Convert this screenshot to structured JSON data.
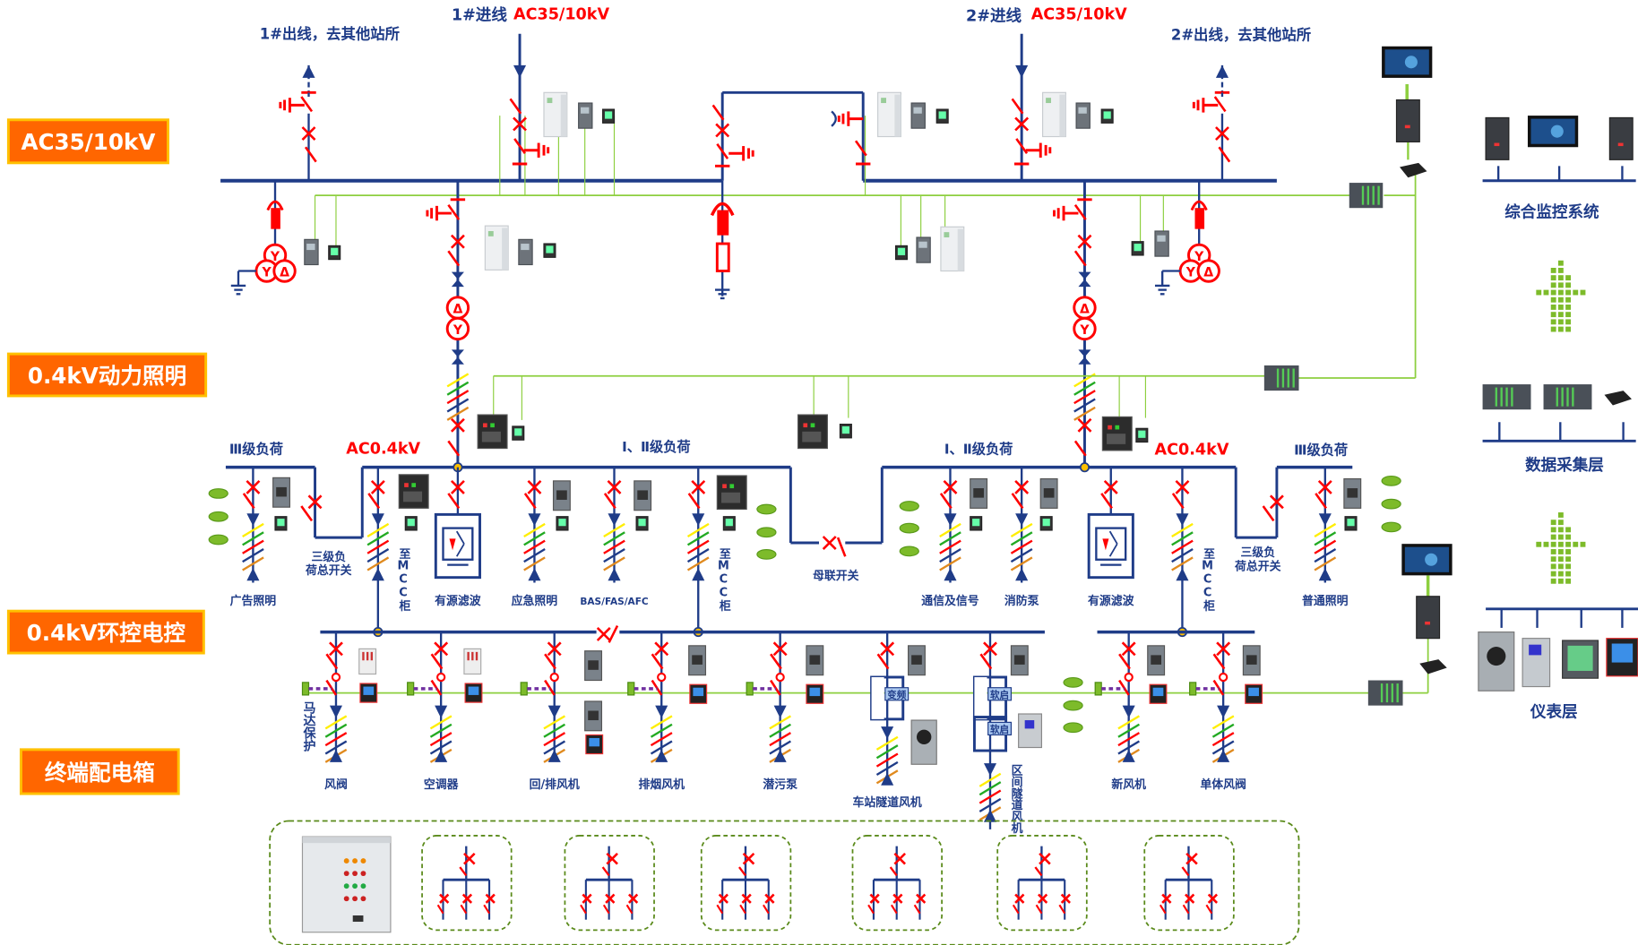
{
  "sections": [
    "AC35/10kV",
    "0.4kV动力照明",
    "0.4kV环控电控",
    "终端配电箱"
  ],
  "top": {
    "out1": "1#出线，去其他站所",
    "in1": "1#进线",
    "in1_voltage": "AC35/10kV",
    "in2": "2#进线",
    "in2_voltage": "AC35/10kV",
    "out2": "2#出线，去其他站所"
  },
  "lv": {
    "left_level3": "Ⅲ级负荷",
    "left_voltage": "AC0.4kV",
    "left_level12": "Ⅰ、Ⅱ级负荷",
    "right_level12": "Ⅰ、Ⅱ级负荷",
    "right_voltage": "AC0.4kV",
    "right_level3": "Ⅲ级负荷",
    "left_level3_switch": [
      "三级负",
      "荷总开关"
    ],
    "right_level3_switch": [
      "三级负",
      "荷总开关"
    ],
    "bus_coupler": "母联开关",
    "loads": [
      "广告照明",
      "至MCC柜",
      "有源滤波",
      "应急照明",
      "BAS/FAS/AFC",
      "至MCC柜",
      "通信及信号",
      "消防泵",
      "有源滤波",
      "至MCC柜",
      "普通照明"
    ]
  },
  "mcc": {
    "motor_protection": "马达保护",
    "vfd_label": "变频",
    "soft_start_label": "软启",
    "loads": [
      "风阀",
      "空调器",
      "回/排风机",
      "排烟风机",
      "潜污泵",
      "车站隧道风机",
      "区间隧道风机",
      "新风机",
      "单体风阀"
    ]
  },
  "system": {
    "monitoring": "综合监控系统",
    "data_layer": "数据采集层",
    "meter_layer": "仪表层"
  },
  "colors": {
    "bus": "#1f3c88",
    "switch": "#ff0000",
    "comm_line": "#8dcf3f",
    "section_label": "#ff6600",
    "section_border": "#ffc000",
    "terminal_box": "#5a8a1a"
  }
}
